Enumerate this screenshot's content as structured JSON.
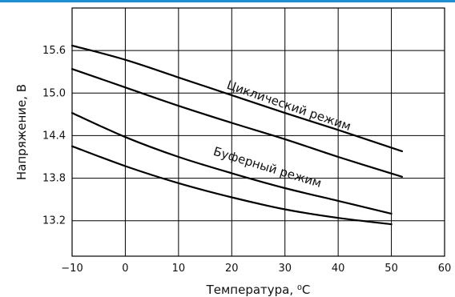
{
  "colors": {
    "topbar": "#1e8fd0",
    "grid": "#000000",
    "curve": "#000000"
  },
  "chart_data": {
    "type": "line",
    "xlabel": "Температура, ⁰С",
    "ylabel": "Напряжение, В",
    "xlim": [
      -10,
      60
    ],
    "ylim": [
      12.7,
      16.2
    ],
    "grid": true,
    "x_ticks": [
      {
        "value": -10,
        "label": "−10"
      },
      {
        "value": 0,
        "label": "0"
      },
      {
        "value": 10,
        "label": "10"
      },
      {
        "value": 20,
        "label": "20"
      },
      {
        "value": 30,
        "label": "30"
      },
      {
        "value": 40,
        "label": "40"
      },
      {
        "value": 50,
        "label": "50"
      },
      {
        "value": 60,
        "label": "60"
      }
    ],
    "y_ticks": [
      {
        "value": 13.2,
        "label": "13.2"
      },
      {
        "value": 13.8,
        "label": "13.8"
      },
      {
        "value": 14.4,
        "label": "14.4"
      },
      {
        "value": 15.0,
        "label": "15.0"
      },
      {
        "value": 15.6,
        "label": "15.6"
      }
    ],
    "series": [
      {
        "group": "Циклический режим",
        "x": [
          -10,
          0,
          10,
          20,
          30,
          40,
          52
        ],
        "y": [
          15.67,
          15.47,
          15.22,
          14.97,
          14.72,
          14.48,
          14.18
        ]
      },
      {
        "group": "Циклический режим",
        "x": [
          -10,
          0,
          10,
          20,
          30,
          40,
          52
        ],
        "y": [
          15.34,
          15.08,
          14.82,
          14.58,
          14.35,
          14.1,
          13.82
        ]
      },
      {
        "group": "Буферный режим",
        "x": [
          -10,
          0,
          10,
          20,
          30,
          40,
          50
        ],
        "y": [
          14.72,
          14.38,
          14.1,
          13.87,
          13.66,
          13.48,
          13.3
        ]
      },
      {
        "group": "Буферный режим",
        "x": [
          -10,
          0,
          10,
          20,
          30,
          40,
          50
        ],
        "y": [
          14.25,
          13.97,
          13.73,
          13.53,
          13.36,
          13.24,
          13.15
        ]
      }
    ],
    "annotations": [
      {
        "text": "Циклический режим",
        "x": 30.5,
        "y": 14.77,
        "angle": 19
      },
      {
        "text": "Буферный режим",
        "x": 26.5,
        "y": 13.9,
        "angle": 17
      }
    ]
  }
}
